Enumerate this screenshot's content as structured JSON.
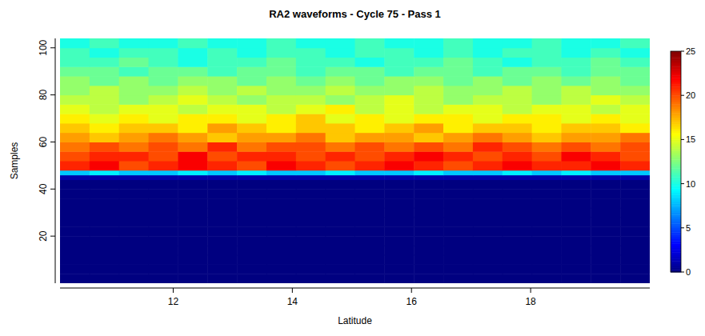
{
  "chart_data": {
    "type": "heatmap",
    "title": "RA2 waveforms - Cycle 75 - Pass 1",
    "x_label": "Latitude",
    "y_label": "Samples",
    "xlim": [
      10.1,
      20
    ],
    "ylim": [
      0,
      104
    ],
    "xticks": [
      12,
      14,
      16,
      18
    ],
    "yticks": [
      20,
      40,
      60,
      80,
      100
    ],
    "x_bins": [
      10.1,
      10.595,
      11.09,
      11.585,
      12.08,
      12.575,
      13.07,
      13.565,
      14.06,
      14.555,
      15.05,
      15.545,
      16.04,
      16.535,
      17.03,
      17.525,
      18.02,
      18.515,
      19.01,
      19.505,
      20
    ],
    "y_bins": [
      0,
      4,
      8,
      12,
      16,
      20,
      24,
      28,
      32,
      36,
      40,
      44,
      46,
      48,
      52,
      56,
      60,
      64,
      68,
      72,
      76,
      80,
      84,
      88,
      92,
      96,
      100,
      104
    ],
    "cells": [
      [
        0,
        0,
        0,
        0,
        0,
        0,
        0,
        0,
        0,
        0,
        0,
        0,
        0,
        0,
        0,
        0,
        0,
        0,
        0,
        0
      ],
      [
        0,
        0,
        0,
        0,
        0,
        0,
        0,
        0,
        0,
        0,
        0,
        0,
        0,
        0,
        0,
        0,
        0,
        0,
        0,
        0
      ],
      [
        0,
        0,
        0,
        0,
        0,
        0,
        0,
        0,
        0,
        0,
        0,
        0,
        0,
        0,
        0,
        0,
        0,
        0,
        0,
        0
      ],
      [
        0,
        0,
        0,
        0,
        0,
        0,
        0,
        0,
        0,
        0,
        0,
        0,
        0,
        0,
        0,
        0,
        0,
        0,
        0,
        0
      ],
      [
        0,
        0,
        0,
        0,
        0,
        0,
        0,
        0,
        0,
        0,
        0,
        0,
        0,
        0,
        0,
        0,
        0,
        0,
        0,
        0
      ],
      [
        0,
        0,
        0,
        0,
        0,
        0,
        0,
        0,
        0,
        0,
        0,
        0,
        0,
        0,
        0,
        0,
        0,
        0,
        0,
        0
      ],
      [
        0,
        0,
        0,
        0,
        0,
        0,
        0,
        0,
        0,
        0,
        0,
        0,
        0,
        0,
        0,
        0,
        0,
        0,
        0,
        0
      ],
      [
        0,
        0,
        0,
        0,
        0,
        0,
        0,
        0,
        0,
        0,
        0,
        0,
        0,
        0,
        0,
        0,
        0,
        0,
        0,
        0
      ],
      [
        0,
        0,
        0,
        0,
        0,
        0,
        0,
        0,
        0,
        0,
        0,
        0,
        0,
        0,
        0,
        0,
        0,
        0,
        0,
        0
      ],
      [
        0,
        0,
        0,
        0,
        0,
        0,
        0,
        0,
        0,
        0,
        0,
        0,
        0,
        0,
        0,
        0,
        0,
        0,
        0,
        0
      ],
      [
        0,
        0,
        0,
        0,
        0,
        0,
        0,
        0,
        0,
        0,
        0,
        0,
        0,
        0,
        0,
        0,
        0,
        0,
        0,
        0
      ],
      [
        1,
        1,
        1,
        1,
        1,
        1,
        1,
        1,
        1,
        1,
        1,
        1,
        1,
        1,
        1,
        1,
        1,
        1,
        1,
        1
      ],
      [
        8,
        9,
        8,
        8,
        9,
        8,
        9,
        8,
        8,
        9,
        8,
        8,
        9,
        8,
        8,
        9,
        8,
        9,
        8,
        8
      ],
      [
        21,
        22,
        20,
        21,
        22,
        21,
        20,
        22,
        21,
        20,
        21,
        22,
        21,
        20,
        21,
        22,
        21,
        21,
        22,
        21
      ],
      [
        20,
        21,
        21,
        20,
        22,
        20,
        21,
        21,
        20,
        21,
        20,
        21,
        22,
        21,
        20,
        21,
        20,
        22,
        21,
        20
      ],
      [
        19,
        20,
        19,
        20,
        19,
        21,
        19,
        20,
        20,
        19,
        20,
        19,
        20,
        19,
        21,
        20,
        19,
        20,
        19,
        20
      ],
      [
        18,
        17,
        18,
        19,
        18,
        17,
        18,
        18,
        19,
        17,
        18,
        18,
        17,
        18,
        19,
        18,
        17,
        18,
        18,
        19
      ],
      [
        17,
        16,
        17,
        17,
        16,
        18,
        17,
        16,
        17,
        17,
        16,
        17,
        18,
        16,
        17,
        17,
        16,
        17,
        17,
        16
      ],
      [
        16,
        15,
        16,
        15,
        16,
        16,
        15,
        16,
        17,
        15,
        16,
        15,
        16,
        16,
        15,
        16,
        16,
        15,
        16,
        15
      ],
      [
        15,
        14,
        15,
        15,
        14,
        15,
        15,
        14,
        15,
        16,
        14,
        15,
        14,
        15,
        15,
        14,
        15,
        15,
        14,
        15
      ],
      [
        14,
        14,
        13,
        14,
        15,
        14,
        13,
        14,
        14,
        13,
        14,
        15,
        14,
        13,
        14,
        14,
        13,
        14,
        15,
        14
      ],
      [
        13,
        14,
        13,
        13,
        14,
        13,
        14,
        13,
        13,
        14,
        13,
        13,
        14,
        13,
        13,
        14,
        13,
        14,
        13,
        13
      ],
      [
        13,
        12,
        13,
        12,
        13,
        13,
        12,
        13,
        12,
        13,
        12,
        13,
        13,
        12,
        13,
        12,
        13,
        12,
        13,
        12
      ],
      [
        12,
        12,
        11,
        12,
        12,
        11,
        12,
        12,
        11,
        12,
        12,
        11,
        12,
        12,
        11,
        12,
        12,
        11,
        12,
        12
      ],
      [
        11,
        11,
        12,
        11,
        10,
        11,
        11,
        12,
        11,
        11,
        10,
        11,
        11,
        12,
        11,
        10,
        11,
        11,
        12,
        11
      ],
      [
        11,
        10,
        11,
        11,
        10,
        11,
        10,
        11,
        11,
        10,
        11,
        11,
        10,
        11,
        10,
        11,
        11,
        10,
        11,
        10
      ],
      [
        10,
        11,
        10,
        10,
        11,
        10,
        10,
        11,
        10,
        10,
        11,
        10,
        10,
        11,
        10,
        10,
        11,
        10,
        10,
        11
      ]
    ],
    "colorbar": {
      "range": [
        0,
        25
      ],
      "ticks": [
        0,
        5,
        10,
        15,
        20,
        25
      ]
    }
  }
}
